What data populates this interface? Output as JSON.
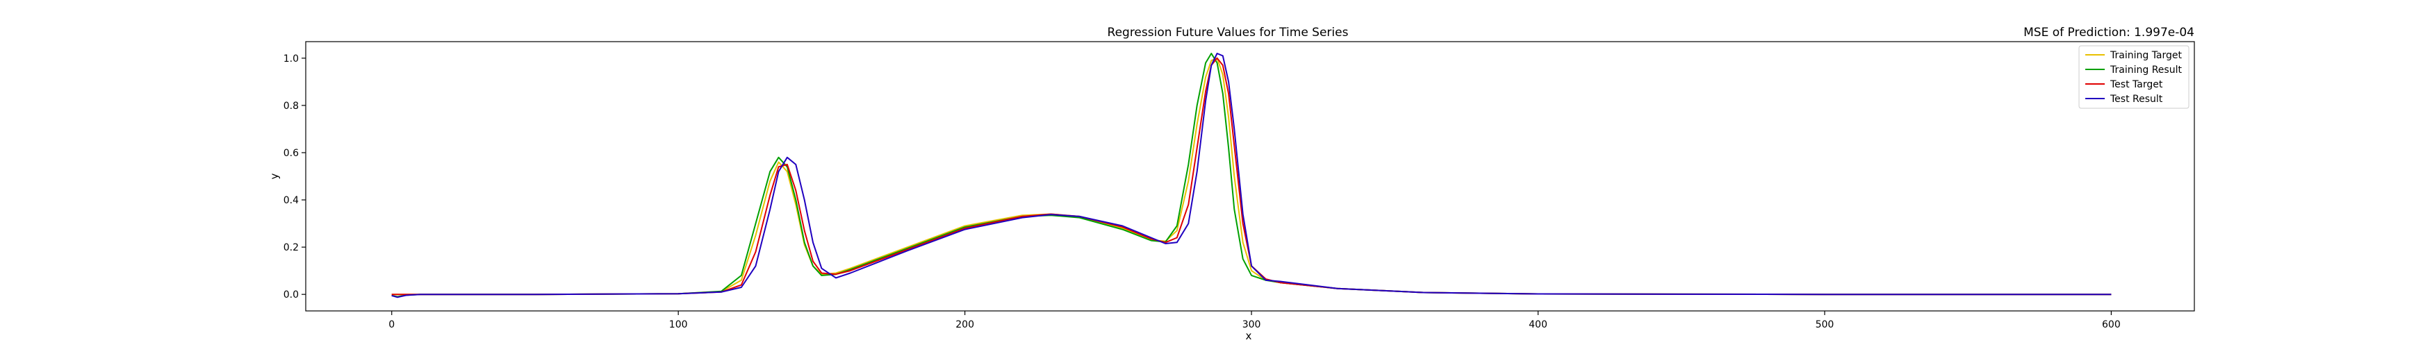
{
  "chart_data": {
    "type": "line",
    "title": "Regression Future Values for Time Series",
    "annotation": "MSE of Prediction: 1.997e-04",
    "xlabel": "x",
    "ylabel": "y",
    "xlim": [
      -30,
      629
    ],
    "ylim": [
      -0.07,
      1.07
    ],
    "xticks": [
      0,
      100,
      200,
      300,
      400,
      500,
      600
    ],
    "yticks": [
      0.0,
      0.2,
      0.4,
      0.6,
      0.8,
      1.0
    ],
    "ytick_labels": [
      "0.0",
      "0.2",
      "0.4",
      "0.6",
      "0.8",
      "1.0"
    ],
    "grid": false,
    "legend_position": "top-right",
    "series": [
      {
        "name": "Training Target",
        "color": "#e8c000",
        "x": [
          0,
          10,
          50,
          100,
          115,
          122,
          127,
          132,
          135,
          138,
          141,
          144,
          147,
          150,
          155,
          160,
          180,
          200,
          220,
          230,
          240,
          255,
          265,
          270,
          274,
          278,
          281,
          284,
          286,
          288,
          290,
          292,
          294,
          297,
          300,
          305,
          310,
          330,
          360,
          400,
          500,
          600
        ],
        "y": [
          0.0,
          0.0,
          0.0,
          0.003,
          0.012,
          0.06,
          0.25,
          0.48,
          0.56,
          0.52,
          0.38,
          0.21,
          0.12,
          0.085,
          0.09,
          0.11,
          0.2,
          0.29,
          0.335,
          0.34,
          0.33,
          0.28,
          0.23,
          0.225,
          0.27,
          0.48,
          0.72,
          0.92,
          0.99,
          1.0,
          0.93,
          0.75,
          0.5,
          0.22,
          0.1,
          0.06,
          0.05,
          0.025,
          0.008,
          0.002,
          0.0,
          0.0
        ]
      },
      {
        "name": "Training Result",
        "color": "#00a000",
        "x": [
          0,
          2,
          5,
          10,
          50,
          100,
          115,
          122,
          127,
          132,
          135,
          138,
          141,
          144,
          147,
          150,
          155,
          160,
          180,
          200,
          220,
          230,
          240,
          255,
          265,
          270,
          274,
          278,
          281,
          284,
          286,
          288,
          290,
          292,
          294,
          297,
          300,
          305,
          310,
          330,
          360,
          400,
          500,
          600
        ],
        "y": [
          -0.005,
          -0.01,
          -0.003,
          0.0,
          0.0,
          0.003,
          0.013,
          0.08,
          0.3,
          0.52,
          0.58,
          0.54,
          0.4,
          0.22,
          0.12,
          0.08,
          0.085,
          0.105,
          0.195,
          0.285,
          0.33,
          0.335,
          0.325,
          0.275,
          0.228,
          0.222,
          0.29,
          0.55,
          0.8,
          0.98,
          1.02,
          0.98,
          0.85,
          0.62,
          0.36,
          0.15,
          0.08,
          0.06,
          0.05,
          0.025,
          0.008,
          0.002,
          0.0,
          0.0
        ]
      },
      {
        "name": "Test Target",
        "color": "#e00000",
        "x": [
          0,
          10,
          50,
          100,
          115,
          122,
          127,
          132,
          135,
          138,
          141,
          144,
          147,
          150,
          155,
          160,
          180,
          200,
          220,
          230,
          240,
          255,
          265,
          270,
          274,
          278,
          281,
          284,
          286,
          288,
          290,
          292,
          294,
          297,
          300,
          305,
          310,
          330,
          360,
          400,
          500,
          600
        ],
        "y": [
          0.0,
          0.0,
          0.0,
          0.003,
          0.01,
          0.04,
          0.18,
          0.42,
          0.54,
          0.55,
          0.44,
          0.27,
          0.14,
          0.09,
          0.085,
          0.1,
          0.19,
          0.28,
          0.33,
          0.34,
          0.33,
          0.285,
          0.235,
          0.22,
          0.24,
          0.38,
          0.62,
          0.86,
          0.97,
          1.0,
          0.97,
          0.85,
          0.63,
          0.3,
          0.12,
          0.065,
          0.05,
          0.025,
          0.008,
          0.002,
          0.0,
          0.0
        ]
      },
      {
        "name": "Test Result",
        "color": "#2000c0",
        "x": [
          0,
          2,
          5,
          10,
          50,
          100,
          115,
          122,
          127,
          132,
          135,
          138,
          141,
          144,
          147,
          150,
          155,
          160,
          180,
          200,
          220,
          230,
          240,
          255,
          265,
          270,
          274,
          278,
          281,
          284,
          286,
          288,
          290,
          292,
          294,
          297,
          300,
          305,
          310,
          330,
          360,
          400,
          500,
          600
        ],
        "y": [
          -0.005,
          -0.012,
          -0.004,
          0.0,
          0.0,
          0.003,
          0.01,
          0.03,
          0.12,
          0.36,
          0.52,
          0.58,
          0.55,
          0.4,
          0.22,
          0.11,
          0.07,
          0.09,
          0.185,
          0.275,
          0.325,
          0.338,
          0.33,
          0.29,
          0.24,
          0.215,
          0.22,
          0.3,
          0.52,
          0.82,
          0.97,
          1.02,
          1.01,
          0.9,
          0.7,
          0.34,
          0.12,
          0.06,
          0.055,
          0.025,
          0.008,
          0.002,
          0.0,
          0.0
        ]
      }
    ]
  }
}
